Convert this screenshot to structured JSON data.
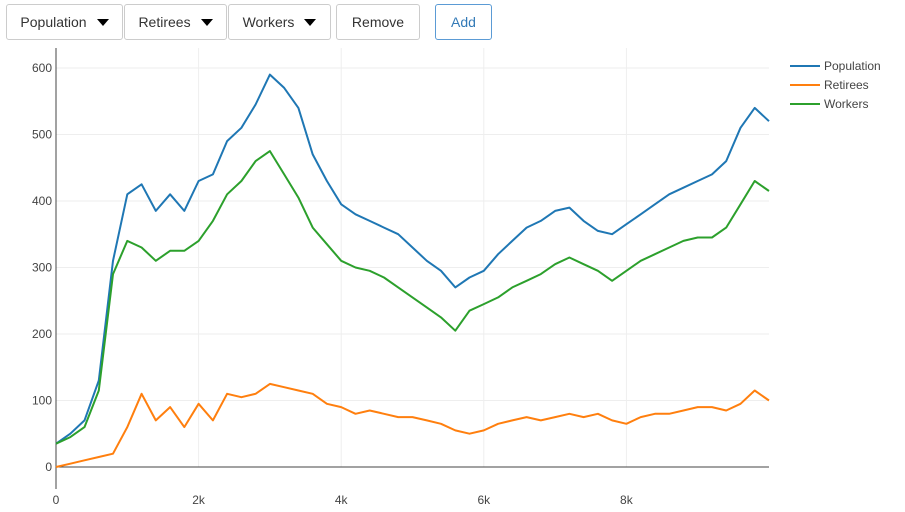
{
  "toolbar": {
    "population_label": "Population",
    "retirees_label": "Retirees",
    "workers_label": "Workers",
    "remove_label": "Remove",
    "add_label": "Add",
    "caret_icon": "caret-down-icon"
  },
  "colors": {
    "Population": "#1f77b4",
    "Retirees": "#ff7f0e",
    "Workers": "#2ca02c",
    "grid": "#eeeeee",
    "axis": "#444444"
  },
  "chart_data": {
    "type": "line",
    "title": "",
    "xlabel": "",
    "ylabel": "",
    "xlim": [
      0,
      10000
    ],
    "ylim": [
      0,
      630
    ],
    "grid": true,
    "legend_position": "top-right",
    "x_ticks": [
      0,
      2000,
      4000,
      6000,
      8000
    ],
    "x_tick_labels": [
      "0",
      "2k",
      "4k",
      "6k",
      "8k"
    ],
    "y_ticks": [
      0,
      100,
      200,
      300,
      400,
      500,
      600
    ],
    "y_tick_labels": [
      "0",
      "100",
      "200",
      "300",
      "400",
      "500",
      "600"
    ],
    "x": [
      0,
      200,
      400,
      600,
      800,
      1000,
      1200,
      1400,
      1600,
      1800,
      2000,
      2200,
      2400,
      2600,
      2800,
      3000,
      3200,
      3400,
      3600,
      3800,
      4000,
      4200,
      4400,
      4600,
      4800,
      5000,
      5200,
      5400,
      5600,
      5800,
      6000,
      6200,
      6400,
      6600,
      6800,
      7000,
      7200,
      7400,
      7600,
      7800,
      8000,
      8200,
      8400,
      8600,
      8800,
      9000,
      9200,
      9400,
      9600,
      9800,
      10000
    ],
    "series": [
      {
        "name": "Population",
        "values": [
          35,
          50,
          70,
          130,
          310,
          410,
          425,
          385,
          410,
          385,
          430,
          440,
          490,
          510,
          545,
          590,
          570,
          540,
          470,
          430,
          395,
          380,
          370,
          360,
          350,
          330,
          310,
          295,
          270,
          285,
          295,
          320,
          340,
          360,
          370,
          385,
          390,
          370,
          355,
          350,
          365,
          380,
          395,
          410,
          420,
          430,
          440,
          460,
          510,
          540,
          520
        ]
      },
      {
        "name": "Retirees",
        "values": [
          0,
          5,
          10,
          15,
          20,
          60,
          110,
          70,
          90,
          60,
          95,
          70,
          110,
          105,
          110,
          125,
          120,
          115,
          110,
          95,
          90,
          80,
          85,
          80,
          75,
          75,
          70,
          65,
          55,
          50,
          55,
          65,
          70,
          75,
          70,
          75,
          80,
          75,
          80,
          70,
          65,
          75,
          80,
          80,
          85,
          90,
          90,
          85,
          95,
          115,
          100
        ]
      },
      {
        "name": "Workers",
        "values": [
          35,
          45,
          60,
          115,
          290,
          340,
          330,
          310,
          325,
          325,
          340,
          370,
          410,
          430,
          460,
          475,
          440,
          405,
          360,
          335,
          310,
          300,
          295,
          285,
          270,
          255,
          240,
          225,
          205,
          235,
          245,
          255,
          270,
          280,
          290,
          305,
          315,
          305,
          295,
          280,
          295,
          310,
          320,
          330,
          340,
          345,
          345,
          360,
          395,
          430,
          415
        ]
      }
    ]
  }
}
